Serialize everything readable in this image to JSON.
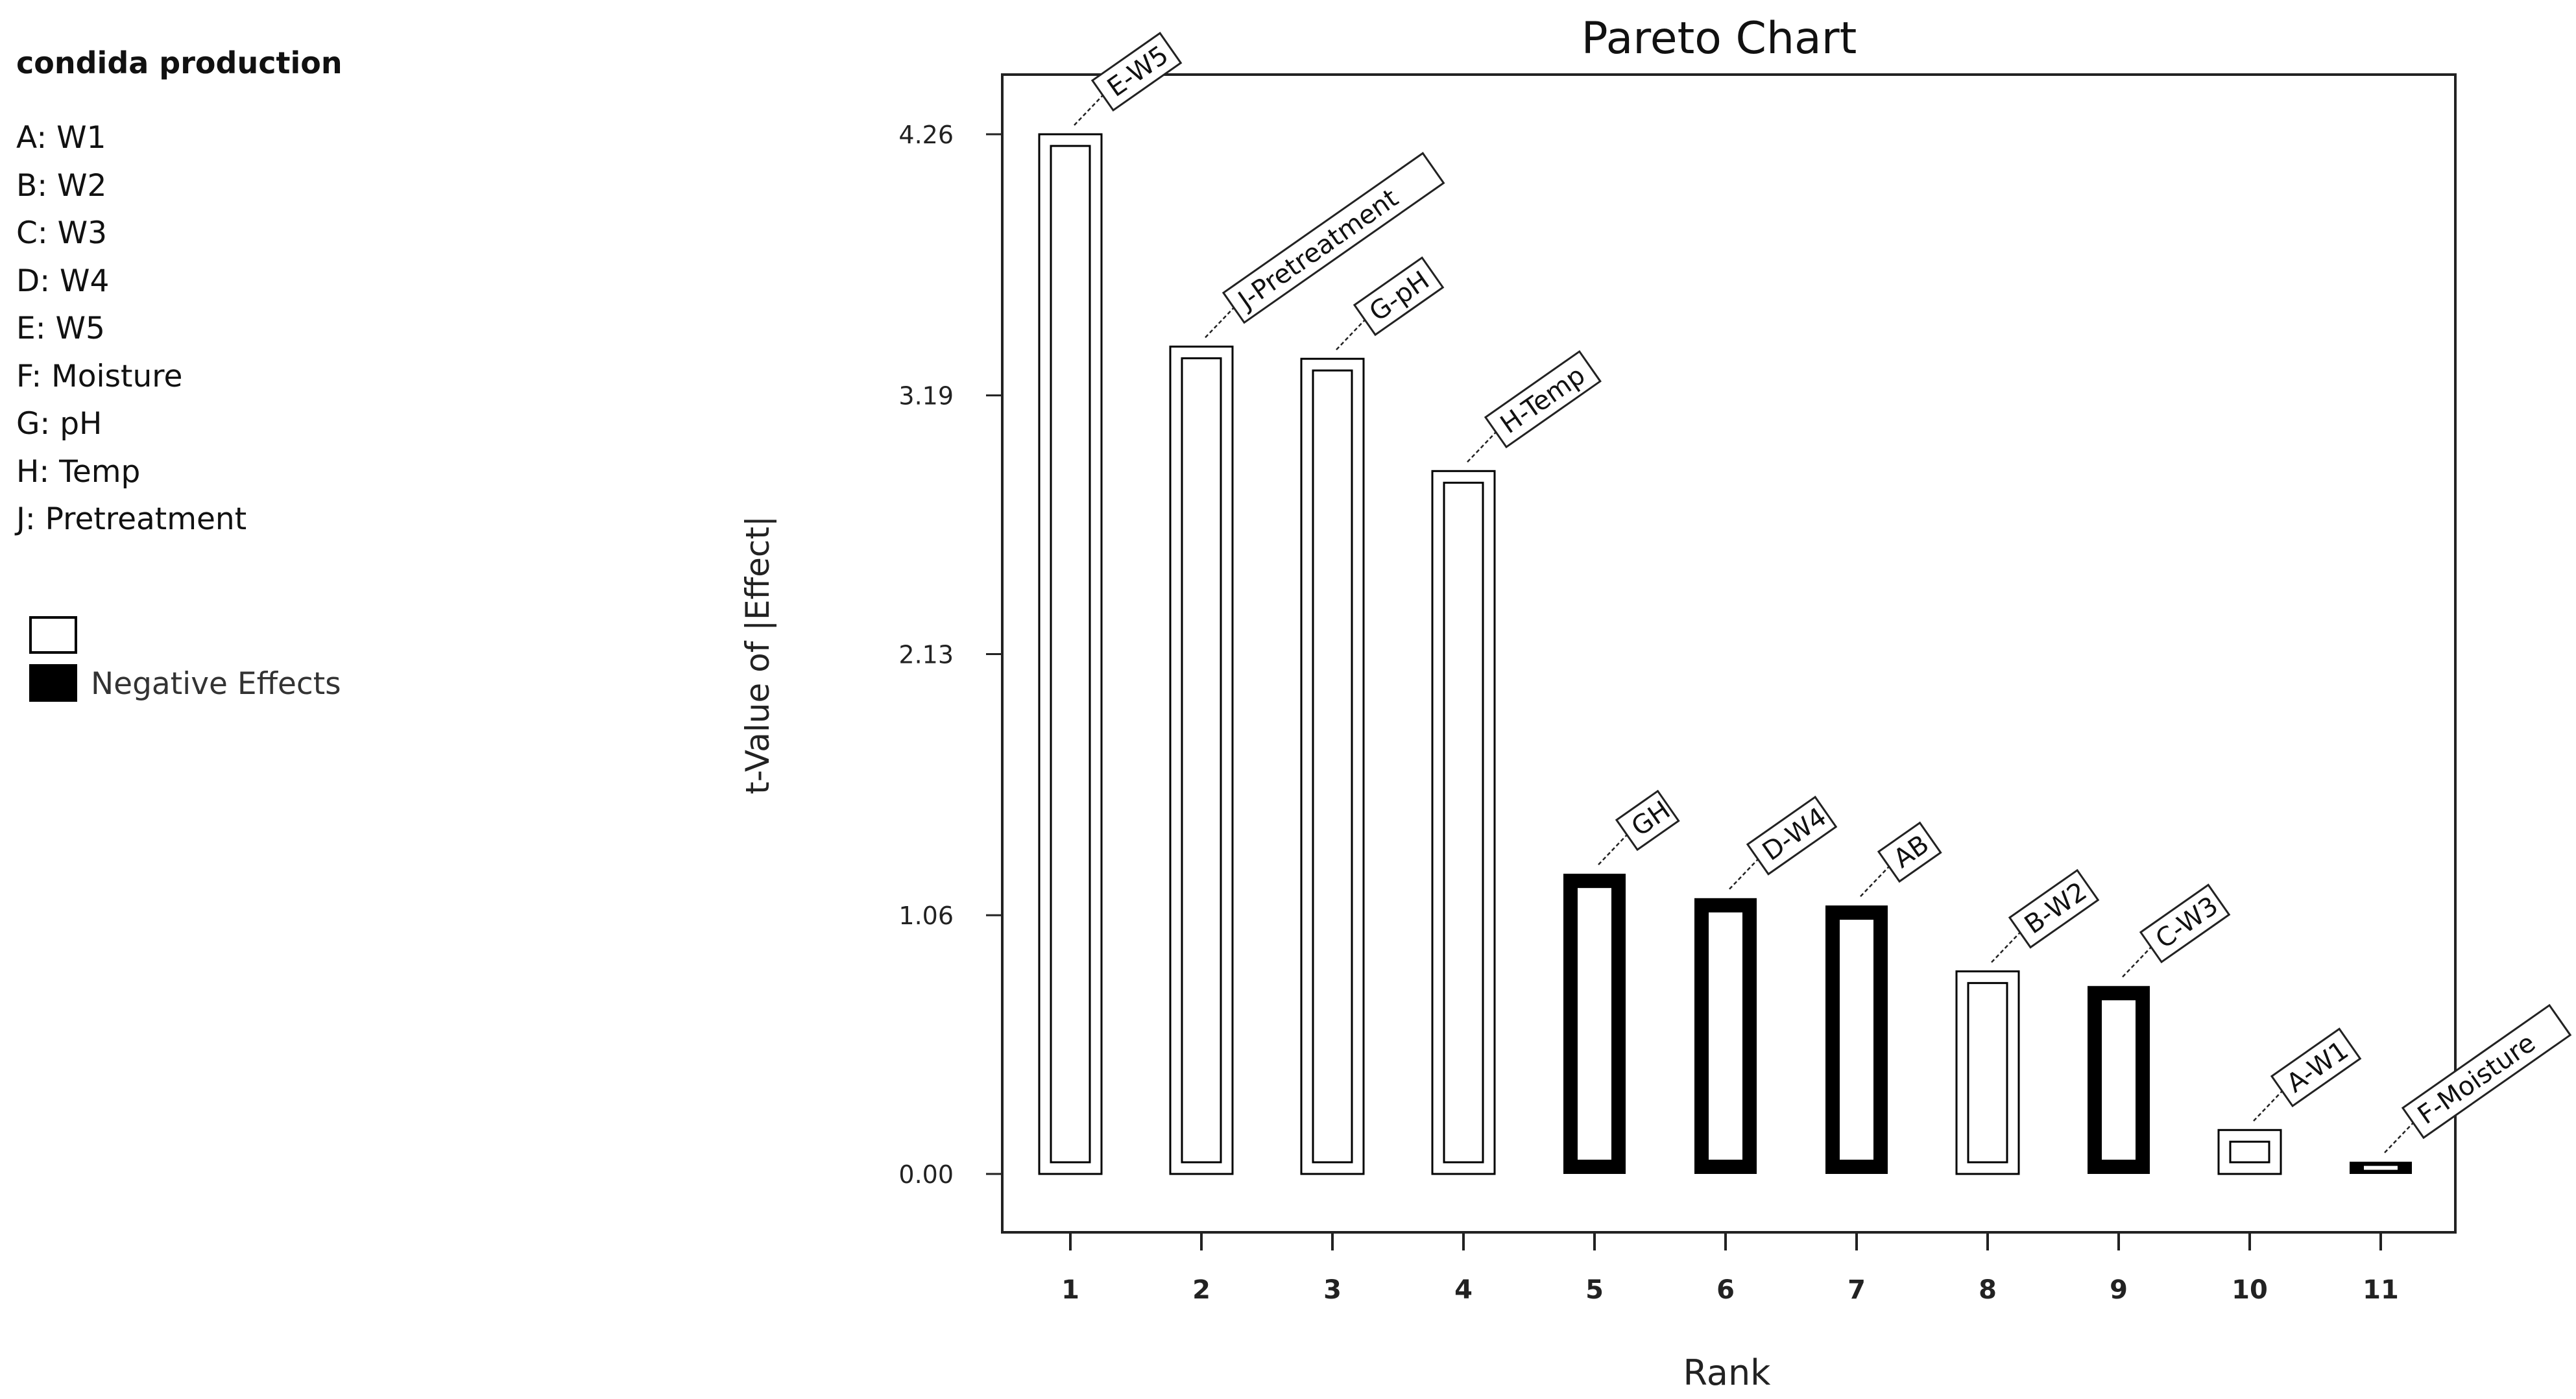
{
  "sidebar": {
    "title": "condida production",
    "factors": [
      "A: W1",
      "B: W2",
      "C: W3",
      "D: W4",
      "E: W5",
      "F: Moisture",
      "G: pH",
      "H: Temp",
      "J: Pretreatment"
    ],
    "legend": {
      "positive_label": "",
      "negative_label": "Negative Effects"
    }
  },
  "chart_data": {
    "type": "bar",
    "title": "Pareto Chart",
    "xlabel": "Rank",
    "ylabel": "t-Value of |Effect|",
    "ylim": [
      0,
      4.26
    ],
    "yticks": [
      "0.00",
      "1.06",
      "2.13",
      "3.19",
      "4.26"
    ],
    "categories": [
      "1",
      "2",
      "3",
      "4",
      "5",
      "6",
      "7",
      "8",
      "9",
      "10",
      "11"
    ],
    "bar_labels": [
      "E-W5",
      "J-Pretreatment",
      "G-pH",
      "H-Temp",
      "GH",
      "D-W4",
      "AB",
      "B-W2",
      "C-W3",
      "A-W1",
      "F-Moisture"
    ],
    "values": [
      4.26,
      3.39,
      3.34,
      2.88,
      1.23,
      1.13,
      1.1,
      0.83,
      0.77,
      0.18,
      0.05
    ],
    "effect_sign": [
      "positive",
      "positive",
      "positive",
      "positive",
      "negative",
      "negative",
      "negative",
      "positive",
      "negative",
      "positive",
      "negative"
    ],
    "grid": false,
    "legend_position": "left"
  },
  "colors": {
    "negative_effect": "#000000",
    "positive_effect": "#ffffff",
    "outline": "#000000"
  }
}
